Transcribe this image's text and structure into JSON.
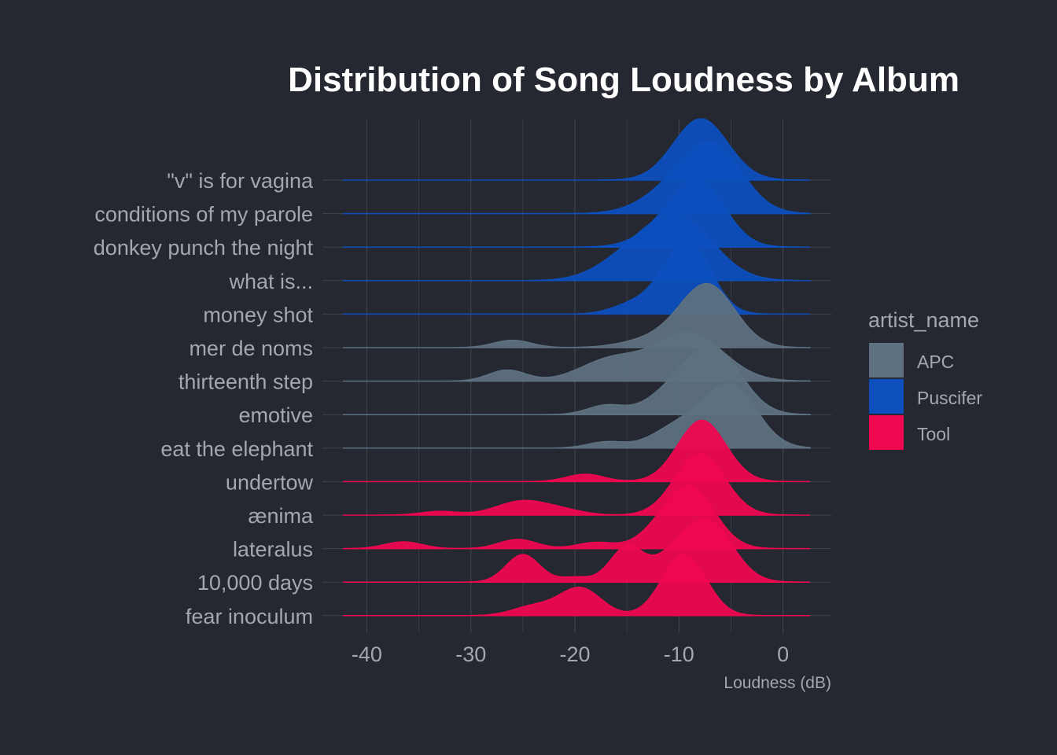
{
  "chart_data": {
    "type": "ridgeline",
    "title": "Distribution of Song Loudness by Album",
    "xlabel": "Loudness (dB)",
    "ylabel": "",
    "xlim": [
      -42.3,
      2.6
    ],
    "xticks": [
      -40,
      -30,
      -20,
      -10,
      0
    ],
    "xtick_labels": [
      "-40",
      "-30",
      "-20",
      "-10",
      "0"
    ],
    "grid": true,
    "legend": {
      "title": "artist_name",
      "position": "right",
      "entries": [
        {
          "name": "APC",
          "color": "#5e7180"
        },
        {
          "name": "Puscifer",
          "color": "#0c4fbd"
        },
        {
          "name": "Tool",
          "color": "#ef0750"
        }
      ]
    },
    "colors": {
      "APC": "#5e7180",
      "Puscifer": "#0c4fbd",
      "Tool": "#ef0750",
      "background": "#252830",
      "grid": "#3f434b"
    },
    "albums": [
      {
        "name": "\"v\" is for vagina",
        "artist": "Puscifer",
        "peaks": [
          [
            -7.9,
            1.0,
            2.6
          ]
        ]
      },
      {
        "name": "conditions of my parole",
        "artist": "Puscifer",
        "peaks": [
          [
            -6.6,
            1.0,
            2.8
          ],
          [
            -10.5,
            0.35,
            3.0
          ]
        ]
      },
      {
        "name": "donkey punch the night",
        "artist": "Puscifer",
        "peaks": [
          [
            -8.0,
            1.0,
            2.5
          ],
          [
            -11.5,
            0.25,
            2.5
          ]
        ]
      },
      {
        "name": "what is...",
        "artist": "Puscifer",
        "peaks": [
          [
            -10.0,
            1.0,
            3.3
          ],
          [
            -15.0,
            0.3,
            3.0
          ]
        ]
      },
      {
        "name": "money shot",
        "artist": "Puscifer",
        "peaks": [
          [
            -8.8,
            1.0,
            2.1
          ],
          [
            -14.5,
            0.15,
            2.0
          ],
          [
            -11.0,
            0.3,
            2.0
          ]
        ]
      },
      {
        "name": "mer de noms",
        "artist": "APC",
        "peaks": [
          [
            -7.2,
            1.0,
            2.6
          ],
          [
            -26.0,
            0.12,
            1.8
          ],
          [
            -12.0,
            0.15,
            3.0
          ]
        ]
      },
      {
        "name": "thirteenth step",
        "artist": "APC",
        "peaks": [
          [
            -9.0,
            0.77,
            3.3
          ],
          [
            -16.5,
            0.35,
            3.0
          ],
          [
            -26.5,
            0.18,
            1.8
          ]
        ]
      },
      {
        "name": "emotive",
        "artist": "APC",
        "peaks": [
          [
            -6.5,
            1.0,
            2.6
          ],
          [
            -17.0,
            0.15,
            1.8
          ],
          [
            -10.5,
            0.35,
            2.5
          ]
        ]
      },
      {
        "name": "eat the elephant",
        "artist": "APC",
        "peaks": [
          [
            -5.0,
            1.0,
            2.5
          ],
          [
            -17.0,
            0.1,
            1.8
          ],
          [
            -10.0,
            0.35,
            2.5
          ]
        ]
      },
      {
        "name": "undertow",
        "artist": "Tool",
        "peaks": [
          [
            -7.8,
            1.0,
            2.3
          ],
          [
            -19.0,
            0.12,
            1.8
          ]
        ]
      },
      {
        "name": "ænima",
        "artist": "Tool",
        "peaks": [
          [
            -8.0,
            1.0,
            2.4
          ],
          [
            -25.0,
            0.23,
            2.5
          ],
          [
            -33.0,
            0.06,
            1.8
          ],
          [
            -21.0,
            0.06,
            2.0
          ]
        ]
      },
      {
        "name": "lateralus",
        "artist": "Tool",
        "peaks": [
          [
            -9.0,
            1.0,
            2.4
          ],
          [
            -25.5,
            0.15,
            1.8
          ],
          [
            -36.5,
            0.11,
            1.8
          ],
          [
            -18.0,
            0.1,
            1.8
          ],
          [
            -12.5,
            0.12,
            2.0
          ]
        ]
      },
      {
        "name": "10,000 days",
        "artist": "Tool",
        "peaks": [
          [
            -7.3,
            1.0,
            2.4
          ],
          [
            -25.0,
            0.45,
            1.6
          ],
          [
            -15.0,
            0.57,
            1.6
          ],
          [
            -20.0,
            0.08,
            1.5
          ],
          [
            -11.0,
            0.25,
            1.8
          ]
        ]
      },
      {
        "name": "fear inoculum",
        "artist": "Tool",
        "peaks": [
          [
            -9.5,
            1.0,
            2.1
          ],
          [
            -19.5,
            0.45,
            2.0
          ],
          [
            -24.0,
            0.15,
            2.0
          ]
        ]
      }
    ]
  }
}
